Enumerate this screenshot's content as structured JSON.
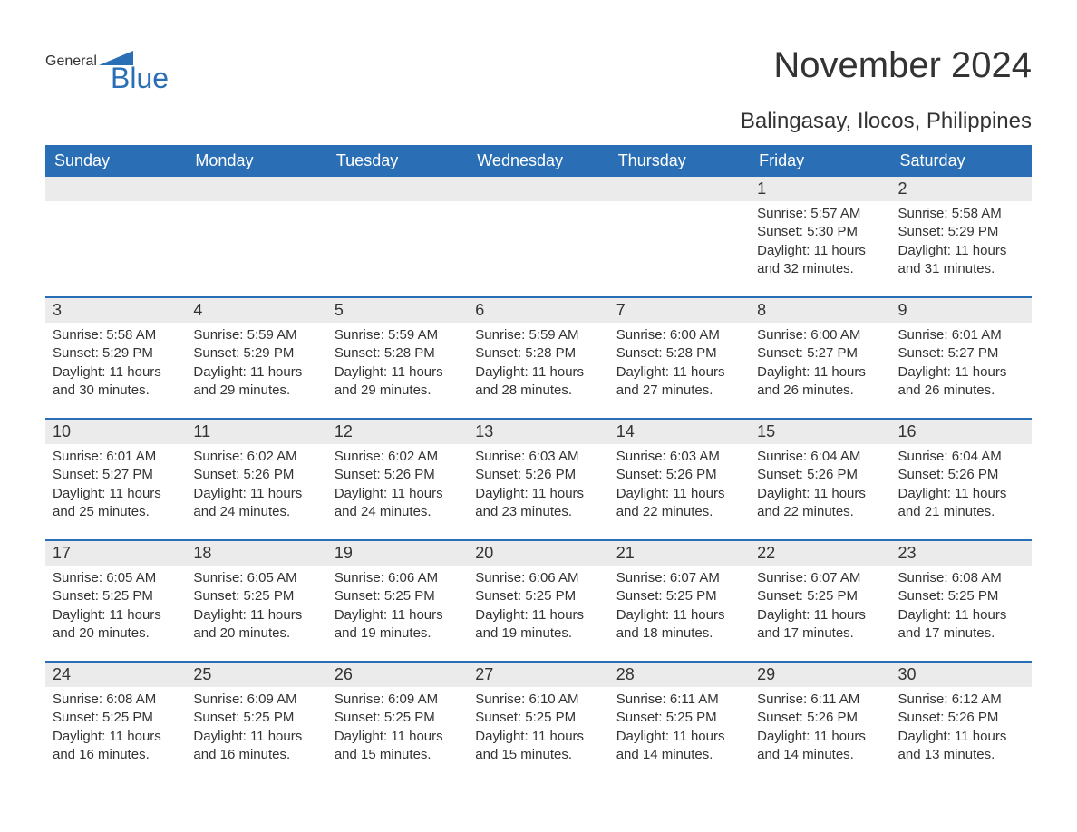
{
  "logo": {
    "general": "General",
    "blue": "Blue",
    "flag_color": "#2a6fb5"
  },
  "header": {
    "month_title": "November 2024",
    "location": "Balingasay, Ilocos, Philippines"
  },
  "calendar": {
    "weekday_labels": [
      "Sunday",
      "Monday",
      "Tuesday",
      "Wednesday",
      "Thursday",
      "Friday",
      "Saturday"
    ],
    "header_bg": "#2a6fb5",
    "header_text_color": "#ffffff",
    "row_border_color": "#2a6fb5",
    "day_number_bg": "#ebebeb",
    "text_color": "#333333",
    "weeks": [
      [
        {
          "day": "",
          "sunrise": "",
          "sunset": "",
          "daylight": ""
        },
        {
          "day": "",
          "sunrise": "",
          "sunset": "",
          "daylight": ""
        },
        {
          "day": "",
          "sunrise": "",
          "sunset": "",
          "daylight": ""
        },
        {
          "day": "",
          "sunrise": "",
          "sunset": "",
          "daylight": ""
        },
        {
          "day": "",
          "sunrise": "",
          "sunset": "",
          "daylight": ""
        },
        {
          "day": "1",
          "sunrise": "Sunrise: 5:57 AM",
          "sunset": "Sunset: 5:30 PM",
          "daylight": "Daylight: 11 hours and 32 minutes."
        },
        {
          "day": "2",
          "sunrise": "Sunrise: 5:58 AM",
          "sunset": "Sunset: 5:29 PM",
          "daylight": "Daylight: 11 hours and 31 minutes."
        }
      ],
      [
        {
          "day": "3",
          "sunrise": "Sunrise: 5:58 AM",
          "sunset": "Sunset: 5:29 PM",
          "daylight": "Daylight: 11 hours and 30 minutes."
        },
        {
          "day": "4",
          "sunrise": "Sunrise: 5:59 AM",
          "sunset": "Sunset: 5:29 PM",
          "daylight": "Daylight: 11 hours and 29 minutes."
        },
        {
          "day": "5",
          "sunrise": "Sunrise: 5:59 AM",
          "sunset": "Sunset: 5:28 PM",
          "daylight": "Daylight: 11 hours and 29 minutes."
        },
        {
          "day": "6",
          "sunrise": "Sunrise: 5:59 AM",
          "sunset": "Sunset: 5:28 PM",
          "daylight": "Daylight: 11 hours and 28 minutes."
        },
        {
          "day": "7",
          "sunrise": "Sunrise: 6:00 AM",
          "sunset": "Sunset: 5:28 PM",
          "daylight": "Daylight: 11 hours and 27 minutes."
        },
        {
          "day": "8",
          "sunrise": "Sunrise: 6:00 AM",
          "sunset": "Sunset: 5:27 PM",
          "daylight": "Daylight: 11 hours and 26 minutes."
        },
        {
          "day": "9",
          "sunrise": "Sunrise: 6:01 AM",
          "sunset": "Sunset: 5:27 PM",
          "daylight": "Daylight: 11 hours and 26 minutes."
        }
      ],
      [
        {
          "day": "10",
          "sunrise": "Sunrise: 6:01 AM",
          "sunset": "Sunset: 5:27 PM",
          "daylight": "Daylight: 11 hours and 25 minutes."
        },
        {
          "day": "11",
          "sunrise": "Sunrise: 6:02 AM",
          "sunset": "Sunset: 5:26 PM",
          "daylight": "Daylight: 11 hours and 24 minutes."
        },
        {
          "day": "12",
          "sunrise": "Sunrise: 6:02 AM",
          "sunset": "Sunset: 5:26 PM",
          "daylight": "Daylight: 11 hours and 24 minutes."
        },
        {
          "day": "13",
          "sunrise": "Sunrise: 6:03 AM",
          "sunset": "Sunset: 5:26 PM",
          "daylight": "Daylight: 11 hours and 23 minutes."
        },
        {
          "day": "14",
          "sunrise": "Sunrise: 6:03 AM",
          "sunset": "Sunset: 5:26 PM",
          "daylight": "Daylight: 11 hours and 22 minutes."
        },
        {
          "day": "15",
          "sunrise": "Sunrise: 6:04 AM",
          "sunset": "Sunset: 5:26 PM",
          "daylight": "Daylight: 11 hours and 22 minutes."
        },
        {
          "day": "16",
          "sunrise": "Sunrise: 6:04 AM",
          "sunset": "Sunset: 5:26 PM",
          "daylight": "Daylight: 11 hours and 21 minutes."
        }
      ],
      [
        {
          "day": "17",
          "sunrise": "Sunrise: 6:05 AM",
          "sunset": "Sunset: 5:25 PM",
          "daylight": "Daylight: 11 hours and 20 minutes."
        },
        {
          "day": "18",
          "sunrise": "Sunrise: 6:05 AM",
          "sunset": "Sunset: 5:25 PM",
          "daylight": "Daylight: 11 hours and 20 minutes."
        },
        {
          "day": "19",
          "sunrise": "Sunrise: 6:06 AM",
          "sunset": "Sunset: 5:25 PM",
          "daylight": "Daylight: 11 hours and 19 minutes."
        },
        {
          "day": "20",
          "sunrise": "Sunrise: 6:06 AM",
          "sunset": "Sunset: 5:25 PM",
          "daylight": "Daylight: 11 hours and 19 minutes."
        },
        {
          "day": "21",
          "sunrise": "Sunrise: 6:07 AM",
          "sunset": "Sunset: 5:25 PM",
          "daylight": "Daylight: 11 hours and 18 minutes."
        },
        {
          "day": "22",
          "sunrise": "Sunrise: 6:07 AM",
          "sunset": "Sunset: 5:25 PM",
          "daylight": "Daylight: 11 hours and 17 minutes."
        },
        {
          "day": "23",
          "sunrise": "Sunrise: 6:08 AM",
          "sunset": "Sunset: 5:25 PM",
          "daylight": "Daylight: 11 hours and 17 minutes."
        }
      ],
      [
        {
          "day": "24",
          "sunrise": "Sunrise: 6:08 AM",
          "sunset": "Sunset: 5:25 PM",
          "daylight": "Daylight: 11 hours and 16 minutes."
        },
        {
          "day": "25",
          "sunrise": "Sunrise: 6:09 AM",
          "sunset": "Sunset: 5:25 PM",
          "daylight": "Daylight: 11 hours and 16 minutes."
        },
        {
          "day": "26",
          "sunrise": "Sunrise: 6:09 AM",
          "sunset": "Sunset: 5:25 PM",
          "daylight": "Daylight: 11 hours and 15 minutes."
        },
        {
          "day": "27",
          "sunrise": "Sunrise: 6:10 AM",
          "sunset": "Sunset: 5:25 PM",
          "daylight": "Daylight: 11 hours and 15 minutes."
        },
        {
          "day": "28",
          "sunrise": "Sunrise: 6:11 AM",
          "sunset": "Sunset: 5:25 PM",
          "daylight": "Daylight: 11 hours and 14 minutes."
        },
        {
          "day": "29",
          "sunrise": "Sunrise: 6:11 AM",
          "sunset": "Sunset: 5:26 PM",
          "daylight": "Daylight: 11 hours and 14 minutes."
        },
        {
          "day": "30",
          "sunrise": "Sunrise: 6:12 AM",
          "sunset": "Sunset: 5:26 PM",
          "daylight": "Daylight: 11 hours and 13 minutes."
        }
      ]
    ]
  }
}
